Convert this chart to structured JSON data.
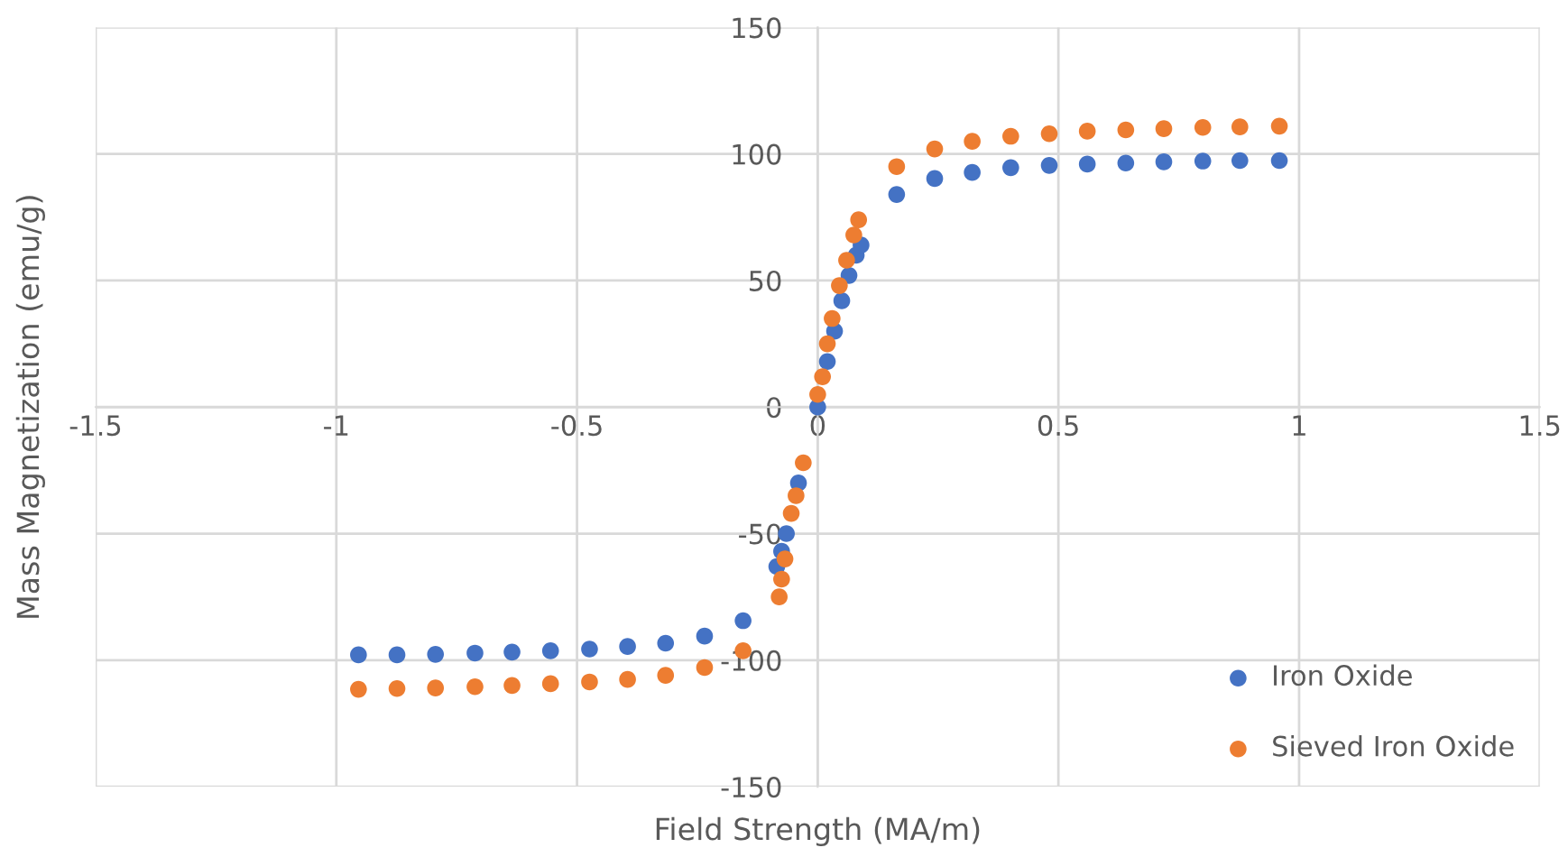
{
  "chart_data": {
    "type": "scatter",
    "xlabel": "Field Strength (MA/m)",
    "ylabel": "Mass Magnetization (emu/g)",
    "xlim": [
      -1.5,
      1.5
    ],
    "ylim": [
      -150,
      150
    ],
    "xticks": [
      -1.5,
      -1,
      -0.5,
      0,
      0.5,
      1,
      1.5
    ],
    "yticks": [
      -150,
      -100,
      -50,
      0,
      50,
      100,
      150
    ],
    "grid": true,
    "legend": "bottom right",
    "marker": "circle",
    "series": [
      {
        "name": "Iron Oxide",
        "color": "#4472c4",
        "x": [
          -0.954,
          -0.874,
          -0.794,
          -0.712,
          -0.635,
          -0.555,
          -0.474,
          -0.395,
          -0.316,
          -0.235,
          -0.155,
          -0.085,
          -0.075,
          -0.065,
          -0.05,
          -0.04,
          -0.028,
          0,
          0.02,
          0.035,
          0.05,
          0.065,
          0.08,
          0.09,
          0.164,
          0.243,
          0.321,
          0.401,
          0.481,
          0.56,
          0.64,
          0.719,
          0.8,
          0.877,
          0.959
        ],
        "values": [
          -97.9,
          -97.9,
          -97.7,
          -97.2,
          -96.8,
          -96.3,
          -95.6,
          -94.6,
          -93.3,
          -90.5,
          -84.4,
          -63,
          -57,
          -50,
          null,
          -30,
          null,
          0,
          18,
          30,
          42,
          52,
          60,
          64,
          84,
          90.3,
          92.7,
          94.6,
          95.5,
          96,
          96.4,
          96.9,
          97.2,
          97.4,
          97.4
        ]
      },
      {
        "name": "Sieved Iron Oxide",
        "color": "#ed7d31",
        "x": [
          -0.954,
          -0.874,
          -0.794,
          -0.712,
          -0.635,
          -0.555,
          -0.474,
          -0.395,
          -0.316,
          -0.235,
          -0.155,
          -0.08,
          -0.075,
          -0.068,
          -0.055,
          -0.045,
          -0.03,
          0,
          0.01,
          0.02,
          0.03,
          0.045,
          0.06,
          0.075,
          0.085,
          0.164,
          0.243,
          0.321,
          0.401,
          0.481,
          0.56,
          0.64,
          0.719,
          0.8,
          0.877,
          0.959
        ],
        "values": [
          -111.5,
          -111.2,
          -111,
          -110.5,
          -110,
          -109.3,
          -108.6,
          -107.6,
          -106,
          -102.9,
          -96.3,
          -75,
          -68,
          -60,
          -42,
          -35,
          -22,
          5,
          12,
          25,
          35,
          48,
          58,
          68,
          74,
          95,
          102,
          105,
          107,
          108,
          109,
          109.5,
          110,
          110.5,
          110.7,
          111
        ]
      }
    ]
  }
}
